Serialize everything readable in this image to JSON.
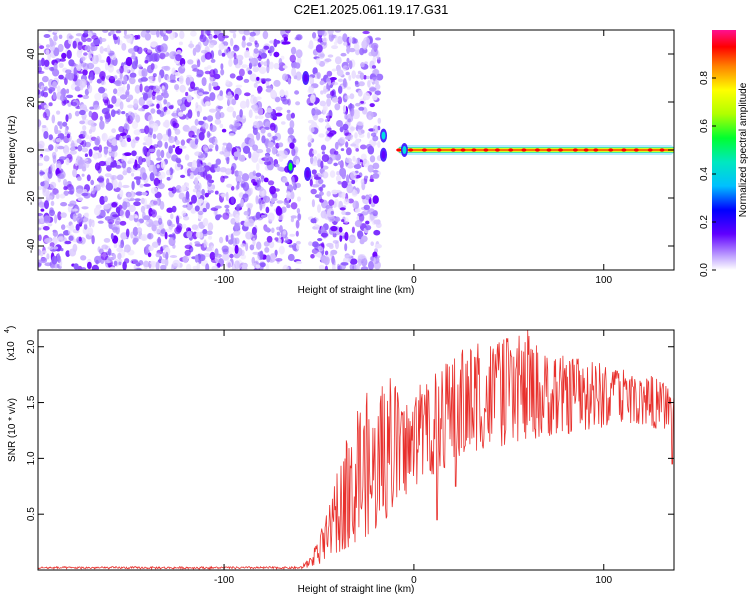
{
  "figure_title": "C2E1.2025.061.19.17.G31",
  "chart_data": [
    {
      "type": "heatmap",
      "title": "C2E1.2025.061.19.17.G31",
      "xlabel": "Height of straight line (km)",
      "ylabel": "Frequency (Hz)",
      "xlim": [
        -198,
        137
      ],
      "ylim": [
        -50,
        50
      ],
      "x_ticks": [
        -100,
        0,
        100
      ],
      "x_tick_labels": [
        "-100",
        "0",
        "100"
      ],
      "y_ticks": [
        -40,
        -20,
        0,
        20,
        40
      ],
      "y_tick_labels": [
        "-40",
        "-20",
        "0",
        "20",
        "40"
      ],
      "colorbar": {
        "label": "Normalized spectral amplitude",
        "range": [
          0.0,
          1.0
        ],
        "ticks": [
          0.0,
          0.2,
          0.4,
          0.6,
          0.8
        ],
        "tick_labels": [
          "0.0",
          "0.2",
          "0.4",
          "0.6",
          "0.8"
        ],
        "colormap": [
          "#ffffff",
          "#a070ff",
          "#6000ff",
          "#0000ff",
          "#00e0e0",
          "#00ff40",
          "#ffff00",
          "#ff8000",
          "#ff0000",
          "#ff1090"
        ]
      },
      "noise_region_km": [
        -198,
        -18
      ],
      "data_gap_km": [
        -60,
        -55
      ],
      "signal_line": {
        "frequency_hz": 0,
        "start_km": -8,
        "end_km": 137,
        "amplitude": 0.97
      },
      "features": [
        {
          "x_km": -65,
          "freq_hz": -7,
          "amplitude": 0.55
        },
        {
          "x_km": -57,
          "freq_hz": 30,
          "amplitude": 0.3
        },
        {
          "x_km": -56,
          "freq_hz": -10,
          "amplitude": 0.3
        },
        {
          "x_km": -16,
          "freq_hz": 6,
          "amplitude": 0.45
        },
        {
          "x_km": -16,
          "freq_hz": -2,
          "amplitude": 0.35
        },
        {
          "x_km": -5,
          "freq_hz": 0,
          "amplitude": 0.5
        }
      ],
      "grid": false
    },
    {
      "type": "line",
      "xlabel": "Height of straight line (km)",
      "ylabel": "SNR (10 * v/v)",
      "y_scale_label": "(x10",
      "y_scale_exponent": "4",
      "xlim": [
        -198,
        137
      ],
      "ylim": [
        0,
        2.15
      ],
      "x_ticks": [
        -100,
        0,
        100
      ],
      "x_tick_labels": [
        "-100",
        "0",
        "100"
      ],
      "y_ticks": [
        0.5,
        1.0,
        1.5,
        2.0
      ],
      "y_tick_labels": [
        "0.5",
        "1.0",
        "1.5",
        "2.0"
      ],
      "color": "#e8302c",
      "grid": false,
      "series": [
        {
          "x": [
            -198,
            -150,
            -100,
            -60,
            -55,
            -50,
            -45,
            -40,
            -35,
            -30,
            -25,
            -20,
            -15,
            -10,
            -5,
            0,
            5,
            10,
            15,
            20,
            25,
            30,
            35,
            40,
            45,
            50,
            55,
            60,
            65,
            70,
            75,
            80,
            85,
            90,
            95,
            100,
            105,
            110,
            115,
            120,
            125,
            130,
            137
          ],
          "low": [
            0.01,
            0.01,
            0.01,
            0.01,
            0.02,
            0.05,
            0.1,
            0.15,
            0.2,
            0.25,
            0.3,
            0.35,
            0.45,
            0.55,
            0.65,
            0.75,
            0.8,
            0.85,
            0.9,
            0.95,
            1.0,
            1.05,
            1.08,
            1.1,
            1.1,
            1.12,
            1.15,
            1.15,
            1.18,
            1.2,
            1.2,
            1.22,
            1.22,
            1.25,
            1.25,
            1.28,
            1.3,
            1.3,
            1.32,
            1.3,
            1.28,
            1.25,
            1.3
          ],
          "high": [
            0.03,
            0.03,
            0.03,
            0.03,
            0.1,
            0.3,
            0.55,
            0.9,
            1.2,
            1.45,
            1.6,
            1.55,
            1.7,
            1.75,
            1.5,
            1.6,
            1.7,
            1.75,
            1.85,
            1.9,
            2.0,
            2.05,
            2.1,
            2.12,
            2.05,
            2.1,
            2.1,
            2.15,
            2.05,
            1.95,
            2.0,
            1.9,
            1.95,
            1.85,
            1.9,
            1.85,
            1.8,
            1.8,
            1.75,
            1.7,
            1.75,
            1.7,
            1.65
          ],
          "dips": [
            {
              "x_km": 12,
              "y": 0.45
            },
            {
              "x_km": 22,
              "y": 0.75
            },
            {
              "x_km": 136,
              "y": 0.95
            }
          ]
        }
      ]
    }
  ]
}
